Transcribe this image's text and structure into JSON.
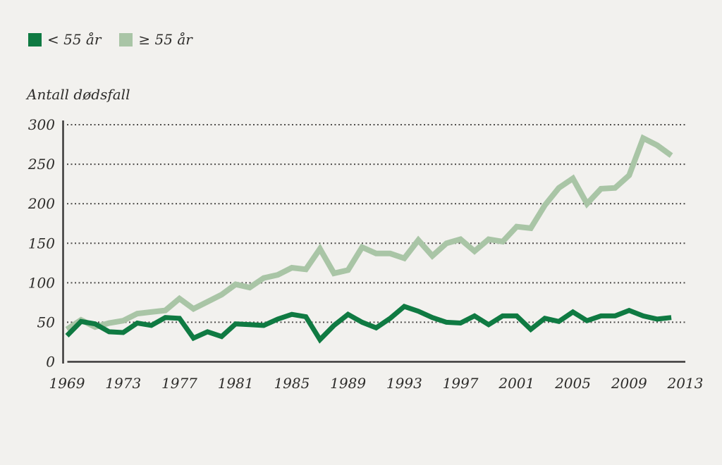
{
  "page": {
    "background_color": "#f2f1ee",
    "text_color": "#2e2d2b"
  },
  "legend": {
    "position": "top-left",
    "items": [
      {
        "label": "< 55 år",
        "color": "#0f7a42"
      },
      {
        "label": "≥ 55 år",
        "color": "#a9c5a6"
      }
    ]
  },
  "chart_data": {
    "type": "line",
    "title": "Antall dødsfall",
    "ylabel": "Antall dødsfall",
    "xlabel": "",
    "ylim": [
      0,
      300
    ],
    "xlim": [
      1969,
      2013
    ],
    "grid": "horizontal dotted",
    "y_ticks": [
      0,
      50,
      100,
      150,
      200,
      250,
      300
    ],
    "x_tick_labels": [
      1969,
      1973,
      1977,
      1981,
      1985,
      1989,
      1993,
      1997,
      2001,
      2005,
      2009,
      2013
    ],
    "x": [
      1969,
      1970,
      1971,
      1972,
      1973,
      1974,
      1975,
      1976,
      1977,
      1978,
      1979,
      1980,
      1981,
      1982,
      1983,
      1984,
      1985,
      1986,
      1987,
      1988,
      1989,
      1990,
      1991,
      1992,
      1993,
      1994,
      1995,
      1996,
      1997,
      1998,
      1999,
      2000,
      2001,
      2002,
      2003,
      2004,
      2005,
      2006,
      2007,
      2008,
      2009,
      2010,
      2011,
      2012
    ],
    "series": [
      {
        "name": "< 55 år",
        "color": "#0f7a42",
        "stroke_width": 7,
        "values": [
          33,
          51,
          48,
          38,
          37,
          49,
          46,
          56,
          55,
          30,
          38,
          32,
          48,
          47,
          46,
          54,
          60,
          57,
          28,
          46,
          60,
          50,
          43,
          55,
          70,
          64,
          56,
          50,
          49,
          58,
          47,
          58,
          58,
          41,
          55,
          51,
          63,
          52,
          58,
          58,
          65,
          58,
          54,
          56
        ]
      },
      {
        "name": "≥ 55 år",
        "color": "#a9c5a6",
        "stroke_width": 8,
        "values": [
          41,
          53,
          44,
          49,
          52,
          61,
          63,
          65,
          80,
          67,
          76,
          85,
          98,
          94,
          106,
          110,
          119,
          117,
          143,
          112,
          116,
          145,
          137,
          137,
          131,
          154,
          134,
          150,
          155,
          140,
          155,
          152,
          171,
          169,
          198,
          220,
          232,
          200,
          219,
          220,
          236,
          283,
          274,
          261
        ]
      }
    ]
  }
}
